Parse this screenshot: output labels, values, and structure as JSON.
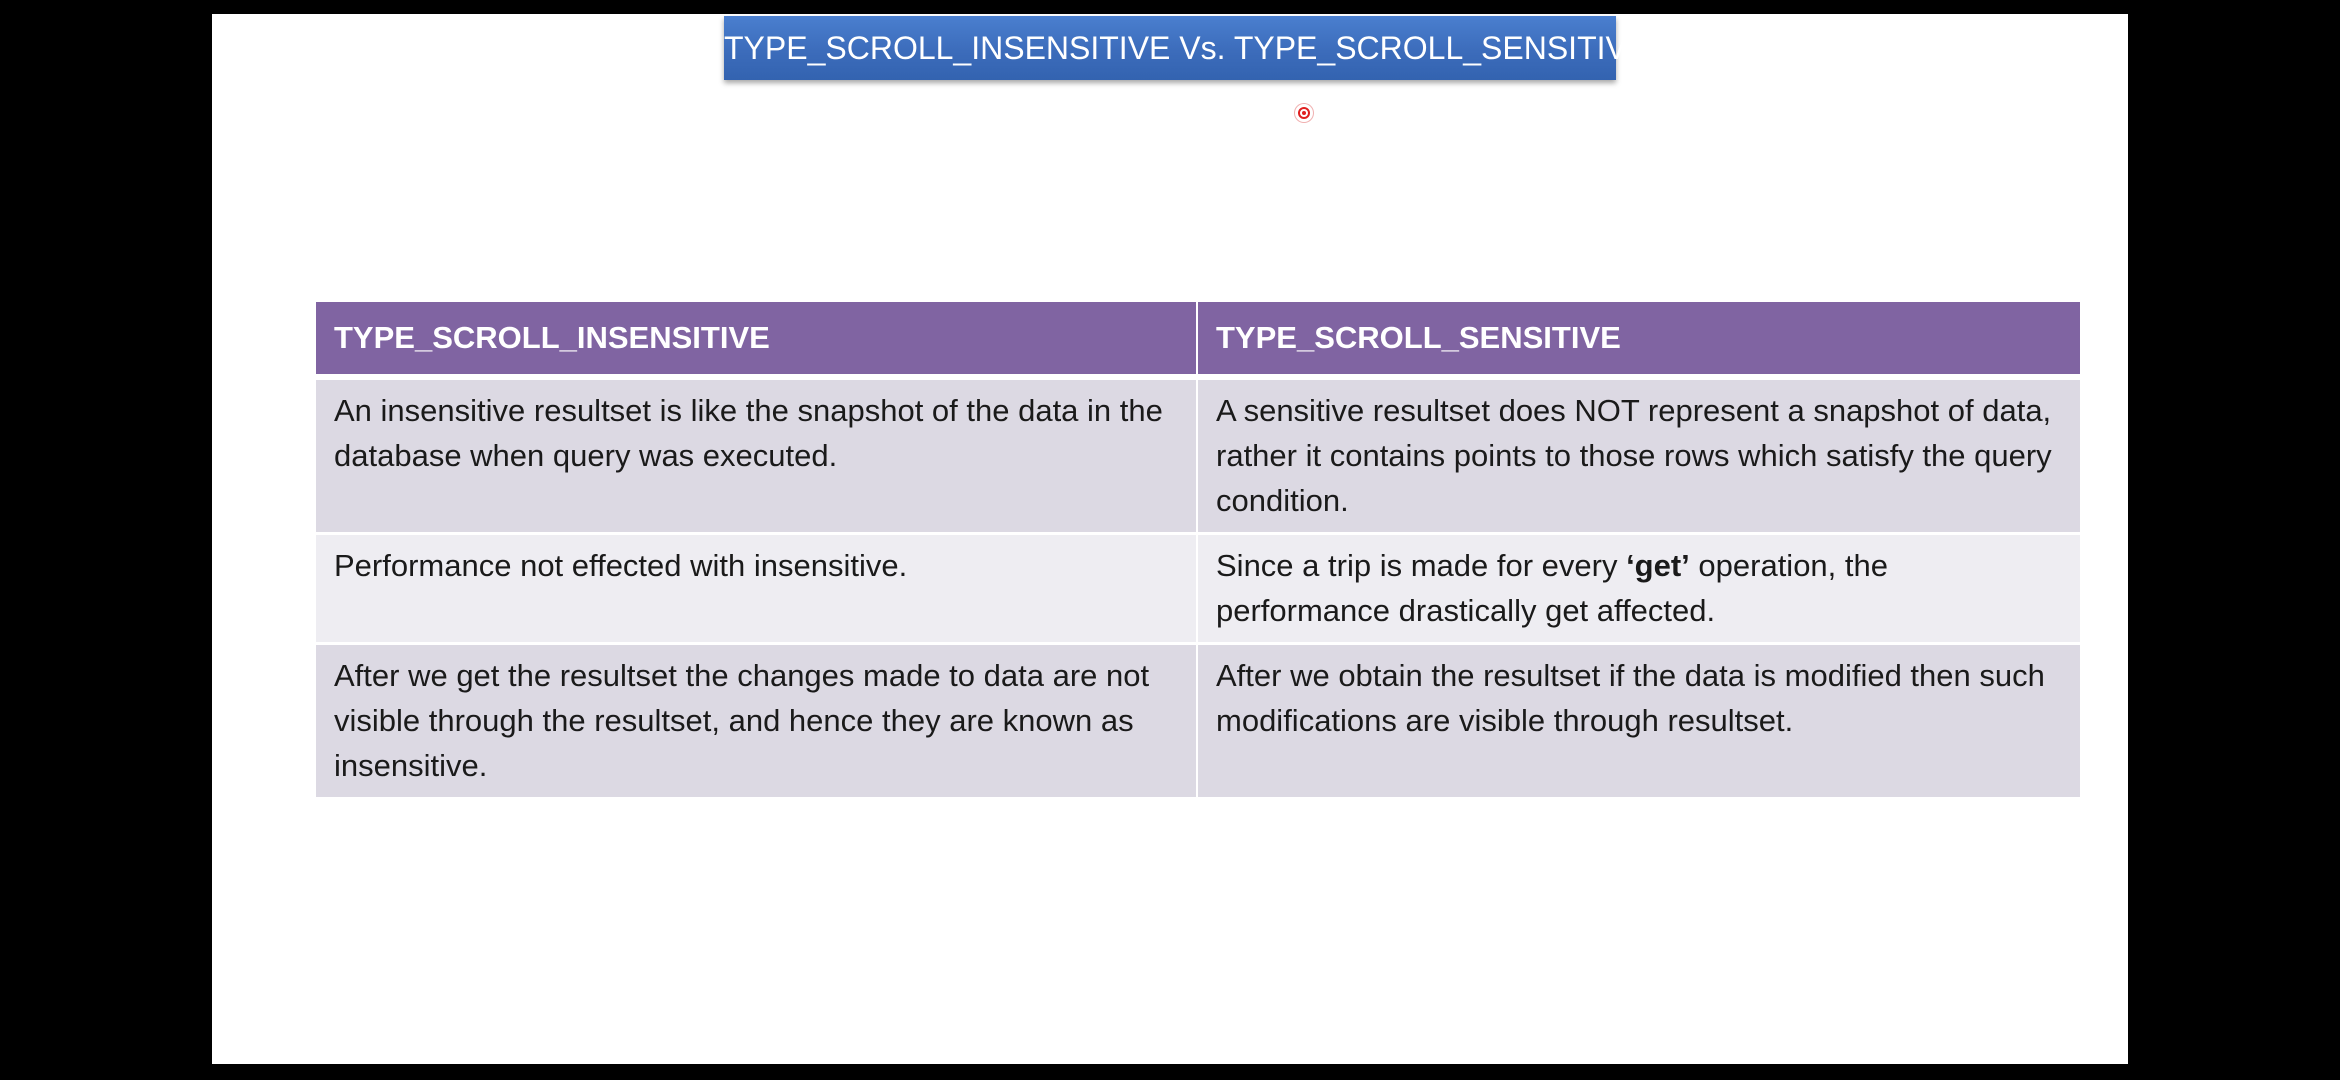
{
  "title": "TYPE_SCROLL_INSENSITIVE Vs. TYPE_SCROLL_SENSITIVE",
  "table": {
    "headers": [
      "TYPE_SCROLL_INSENSITIVE",
      "TYPE_SCROLL_SENSITIVE"
    ],
    "rows": [
      {
        "insensitive": "An insensitive  resultset is like the snapshot of the data in the database when query was executed.",
        "sensitive": "A sensitive resultset does NOT represent a snapshot of data, rather it contains points to those rows which satisfy the query condition."
      },
      {
        "insensitive": "Performance not effected with insensitive.",
        "sensitive_before": "Since a trip is made for every ",
        "sensitive_bold": "‘get’",
        "sensitive_after": " operation, the performance drastically get affected."
      },
      {
        "insensitive": "After we get the resultset the changes made to data are not visible through the resultset, and hence they are known as insensitive.",
        "sensitive": "After we obtain the resultset if the data is modified then such modifications are visible through resultset."
      }
    ]
  },
  "colors": {
    "title_bar": "#3c6cbb",
    "header": "#8064a2",
    "row_odd": "#dcd9e3",
    "row_even": "#eeedf2",
    "pointer": "#e02020"
  }
}
